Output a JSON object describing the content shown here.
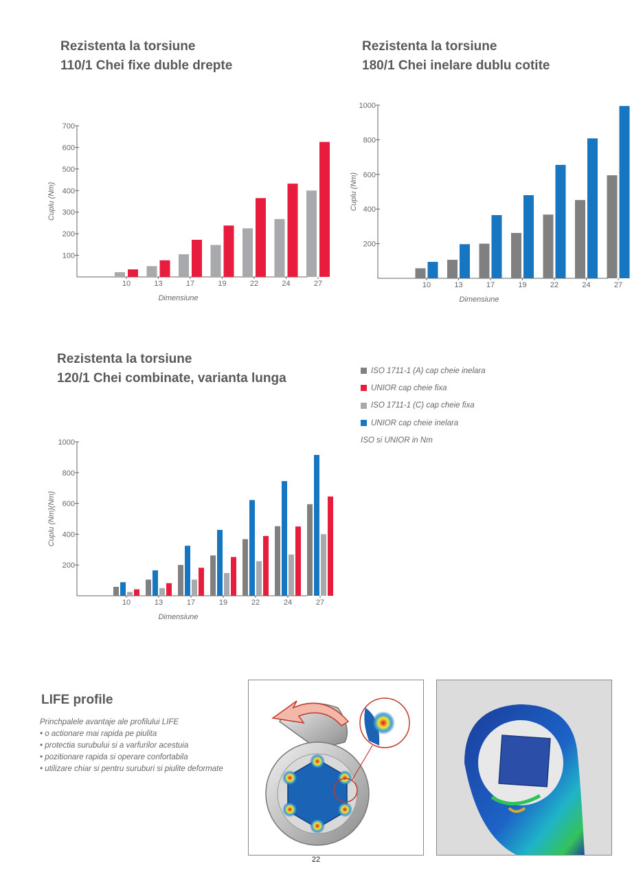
{
  "colors": {
    "iso_a": "#808080",
    "unior_fixa": "#e81c3c",
    "iso_c": "#a8a9ad",
    "unior_inelara": "#1776c1"
  },
  "legend": {
    "items": [
      {
        "label": "ISO 1711-1 (A) cap cheie inelara",
        "color": "#808080"
      },
      {
        "label": "UNIOR cap cheie fixa",
        "color": "#e81c3c"
      },
      {
        "label": "ISO 1711-1 (C) cap cheie fixa",
        "color": "#a8a9ad"
      },
      {
        "label": "UNIOR cap cheie inelara",
        "color": "#1776c1"
      }
    ],
    "note": "ISO si UNIOR in Nm"
  },
  "chart_data": [
    {
      "type": "bar",
      "title": [
        "Rezistenta la torsiune",
        "110/1 Chei fixe duble drepte"
      ],
      "xlabel": "Dimensiune",
      "ylabel": "Cuplu (Nm)",
      "ylim": [
        0,
        700
      ],
      "yticks": [
        100,
        200,
        300,
        400,
        500,
        600,
        700
      ],
      "categories": [
        "10",
        "13",
        "17",
        "19",
        "22",
        "24",
        "27"
      ],
      "series": [
        {
          "name": "ISO 1711-1 (C) cap cheie fixa",
          "color": "#a8a9ad",
          "values": [
            22,
            50,
            105,
            148,
            225,
            268,
            400
          ]
        },
        {
          "name": "UNIOR cap cheie fixa",
          "color": "#e81c3c",
          "values": [
            35,
            77,
            172,
            238,
            365,
            432,
            625
          ]
        }
      ]
    },
    {
      "type": "bar",
      "title": [
        "Rezistenta la torsiune",
        "180/1 Chei inelare dublu cotite"
      ],
      "xlabel": "Dimensiune",
      "ylabel": "Cuplu (Nm)",
      "ylim": [
        0,
        1000
      ],
      "yticks": [
        200,
        400,
        600,
        800,
        1000
      ],
      "categories": [
        "10",
        "13",
        "17",
        "19",
        "22",
        "24",
        "27"
      ],
      "series": [
        {
          "name": "ISO 1711-1 (A) cap cheie inelara",
          "color": "#808080",
          "values": [
            58,
            107,
            200,
            262,
            368,
            452,
            595
          ]
        },
        {
          "name": "UNIOR cap cheie inelara",
          "color": "#1776c1",
          "values": [
            95,
            197,
            365,
            480,
            655,
            808,
            995
          ]
        }
      ]
    },
    {
      "type": "bar",
      "title": [
        "Rezistenta la torsiune",
        "120/1 Chei combinate, varianta lunga"
      ],
      "xlabel": "Dimensiune",
      "ylabel": "Cuplu (Nm)(Nm)",
      "ylim": [
        0,
        1000
      ],
      "yticks": [
        200,
        400,
        600,
        800,
        1000
      ],
      "categories": [
        "10",
        "13",
        "17",
        "19",
        "22",
        "24",
        "27"
      ],
      "series": [
        {
          "name": "ISO 1711-1 (A) cap cheie inelara",
          "color": "#808080",
          "values": [
            58,
            105,
            200,
            262,
            368,
            452,
            595
          ]
        },
        {
          "name": "UNIOR cap cheie inelara",
          "color": "#1776c1",
          "values": [
            88,
            165,
            325,
            428,
            622,
            745,
            915
          ]
        },
        {
          "name": "ISO 1711-1 (C) cap cheie fixa",
          "color": "#a8a9ad",
          "values": [
            25,
            50,
            105,
            148,
            225,
            268,
            400
          ]
        },
        {
          "name": "UNIOR cap cheie fixa",
          "color": "#e81c3c",
          "values": [
            42,
            82,
            182,
            252,
            388,
            450,
            645
          ]
        }
      ]
    }
  ],
  "life": {
    "title": "LIFE profile",
    "intro": "Princhpalele avantaje ale profilului LIFE",
    "bullets": [
      "• o actionare mai rapida pe piulita",
      "• protectia surubului si a varfurilor acestuia",
      "• pozitionare rapida si operare confortabila",
      "• utilizare chiar si pentru suruburi si piulite deformate"
    ]
  },
  "page_number": "22"
}
